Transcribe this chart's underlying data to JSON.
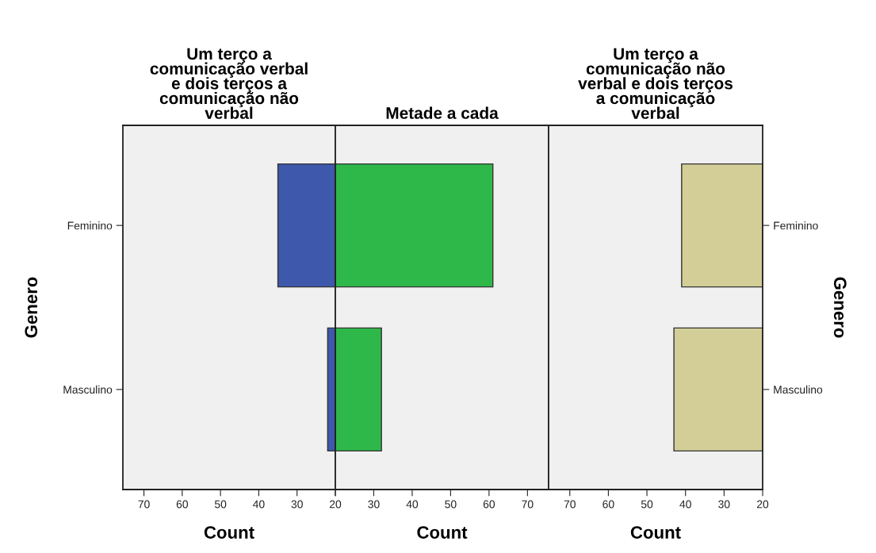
{
  "chart_data": [
    {
      "type": "bar",
      "orientation": "horizontal",
      "title": "Um terço a\ncomunicação verbal\ne dois terços a\ncomunicação não\nverbal",
      "xlabel": "Count",
      "ylabel": "Genero",
      "categories": [
        "Feminino",
        "Masculino"
      ],
      "values": [
        35,
        22
      ],
      "color": "#3e58ac",
      "xlim": [
        75.5,
        20
      ],
      "xticks": [
        70,
        60,
        50,
        40,
        30,
        {
          "value": 20,
          "label": null
        }
      ],
      "grid": false,
      "legend": false
    },
    {
      "type": "bar",
      "orientation": "horizontal",
      "title": "Metade a cada",
      "xlabel": "Count",
      "categories": [
        null,
        null
      ],
      "values": [
        61,
        32
      ],
      "color": "#2fb84a",
      "xlim": [
        20,
        75.5
      ],
      "xticks": [
        20,
        30,
        40,
        50,
        60,
        70
      ],
      "tick_labels": "x",
      "grid": false,
      "legend": false
    },
    {
      "type": "bar",
      "orientation": "horizontal",
      "title": "Um terço a\ncomunicação não\nverbal e dois terços\na comunicação\nverbal",
      "xlabel": "Count",
      "y2label": "Genero",
      "categories": [
        "Feminino",
        "Masculino"
      ],
      "values": [
        41,
        43
      ],
      "color": "#d3ce97",
      "xlim": [
        75.5,
        20
      ],
      "xticks": [
        70,
        60,
        50,
        40,
        30,
        20
      ],
      "grid": false,
      "legend": false
    }
  ]
}
